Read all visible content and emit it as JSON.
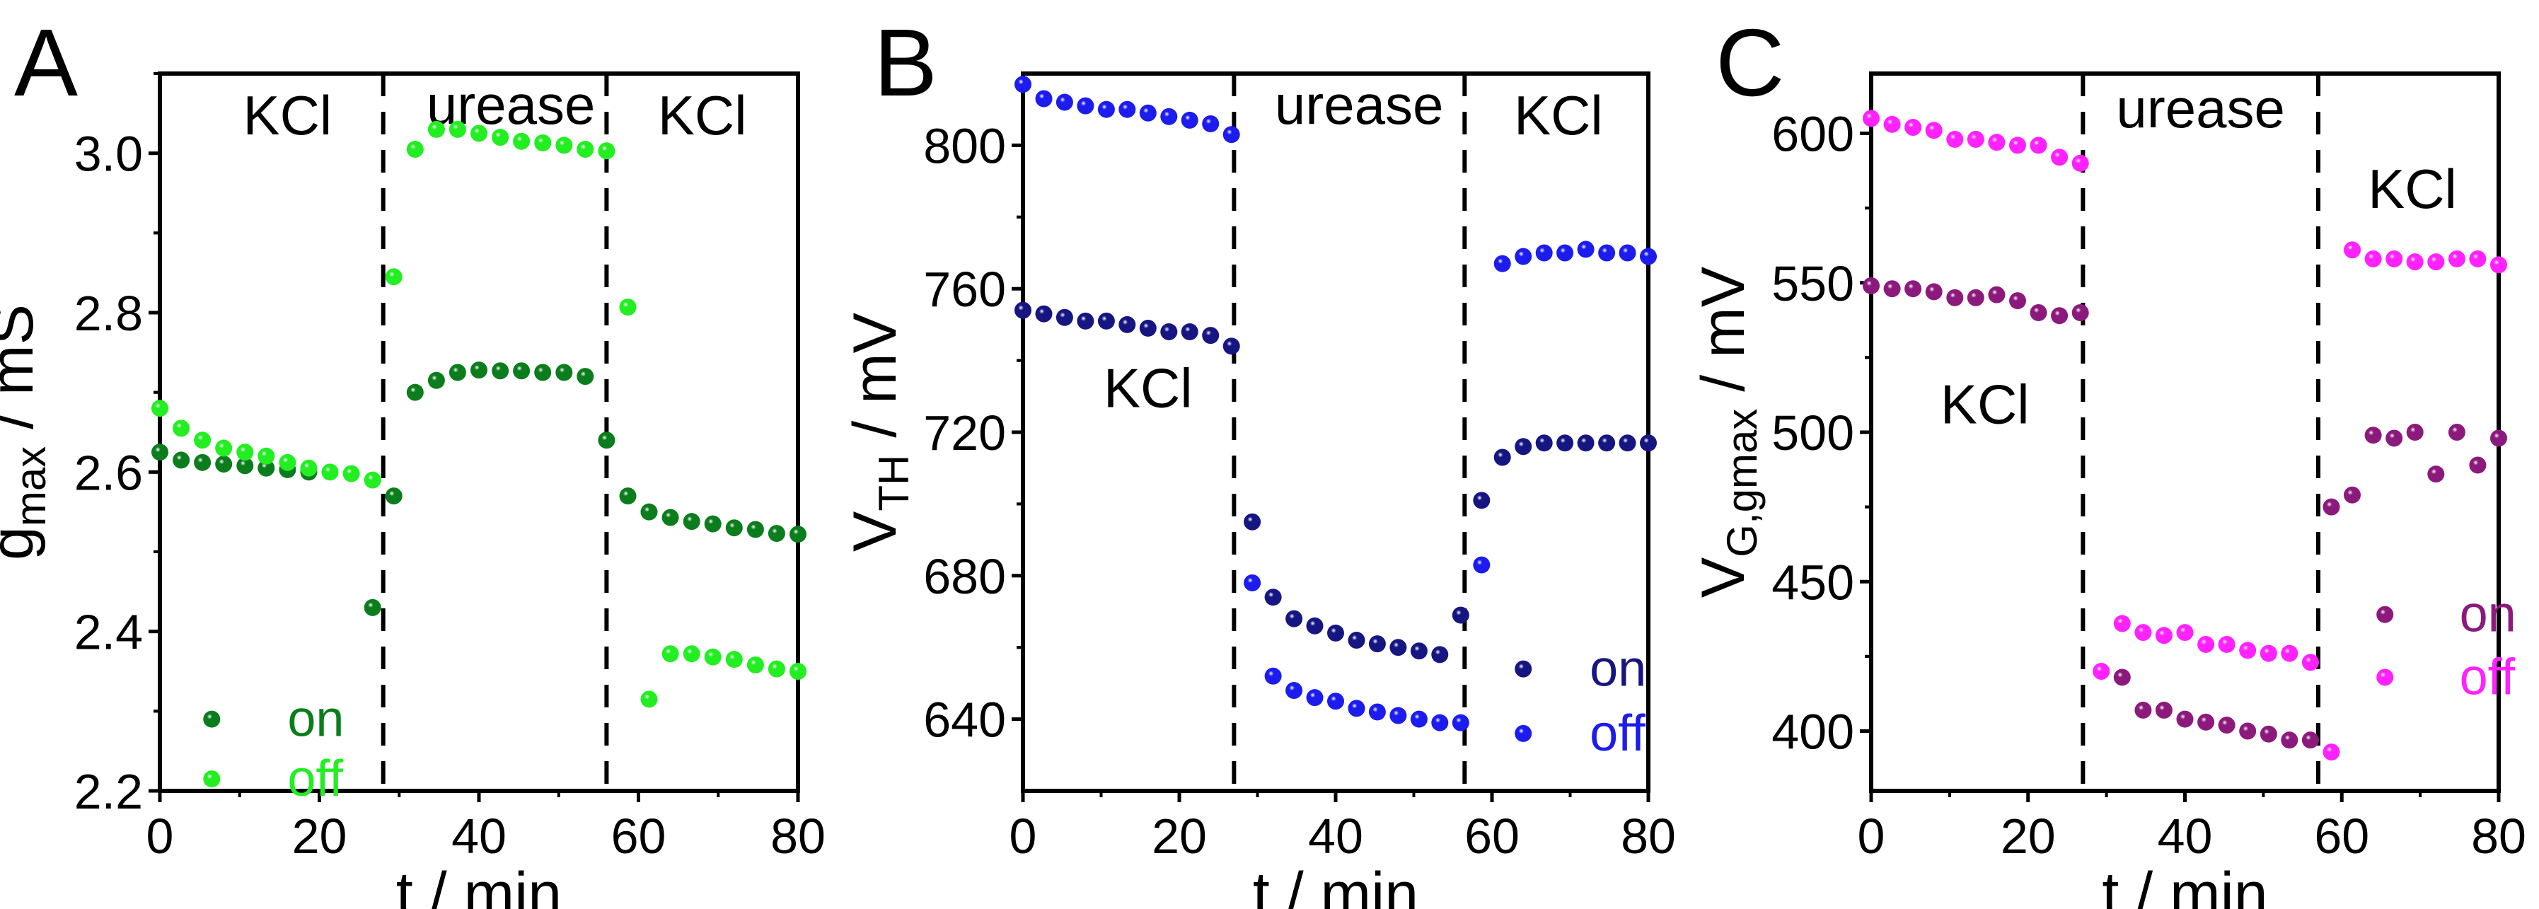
{
  "chart_data": [
    {
      "type": "scatter",
      "panel": "A",
      "xlabel": "t / min",
      "ylabel": {
        "main": "g",
        "sub": "max",
        "unit": " / mS"
      },
      "xlim": [
        0,
        80
      ],
      "ylim": [
        2.2,
        3.1
      ],
      "xticks": [
        "0",
        "20",
        "40",
        "60",
        "80"
      ],
      "yticks": [
        "2.2",
        "2.4",
        "2.6",
        "2.8",
        "3.0"
      ],
      "ytick_values": [
        2.2,
        2.4,
        2.6,
        2.8,
        3.0
      ],
      "phase_boundaries": [
        28,
        56
      ],
      "annotations": [
        "KCl",
        "urease",
        "KCl"
      ],
      "legend_position": "bottom-left",
      "x": [
        0,
        2.67,
        5.33,
        8,
        10.67,
        13.33,
        16,
        18.67,
        21.33,
        24,
        26.67,
        29.33,
        32,
        34.67,
        37.33,
        40,
        42.67,
        45.33,
        48,
        50.67,
        53.33,
        56,
        58.67,
        61.33,
        64,
        66.67,
        69.33,
        72,
        74.67,
        77.33,
        80
      ],
      "series": [
        {
          "name": "on",
          "color": "#0b7d1c",
          "values": [
            2.625,
            2.615,
            2.612,
            2.61,
            2.608,
            2.605,
            2.603,
            2.6,
            null,
            null,
            2.43,
            2.57,
            2.7,
            2.715,
            2.725,
            2.728,
            2.727,
            2.727,
            2.725,
            2.725,
            2.72,
            2.64,
            2.57,
            2.55,
            2.543,
            2.538,
            2.535,
            2.53,
            2.528,
            2.523,
            2.522
          ]
        },
        {
          "name": "off",
          "color": "#22ee22",
          "values": [
            2.68,
            2.655,
            2.64,
            2.63,
            2.625,
            2.62,
            2.612,
            2.605,
            2.6,
            2.598,
            2.59,
            2.845,
            3.005,
            3.03,
            3.03,
            3.025,
            3.02,
            3.015,
            3.013,
            3.01,
            3.005,
            3.003,
            2.807,
            2.315,
            2.372,
            2.372,
            2.368,
            2.365,
            2.358,
            2.353,
            2.35
          ]
        }
      ]
    },
    {
      "type": "scatter",
      "panel": "B",
      "xlabel": "t / min",
      "ylabel": {
        "main": "V",
        "sub": "TH",
        "unit": " / mV"
      },
      "xlim": [
        0,
        80
      ],
      "ylim": [
        620,
        820
      ],
      "xticks": [
        "0",
        "20",
        "40",
        "60",
        "80"
      ],
      "yticks": [
        "640",
        "680",
        "720",
        "760",
        "800"
      ],
      "ytick_values": [
        640,
        680,
        720,
        760,
        800
      ],
      "phase_boundaries": [
        27,
        56.5
      ],
      "annotations": [
        "urease",
        "KCl",
        "KCl"
      ],
      "legend_position": "bottom-right",
      "x": [
        0,
        2.67,
        5.33,
        8,
        10.67,
        13.33,
        16,
        18.67,
        21.33,
        24,
        26.67,
        29.33,
        32,
        34.67,
        37.33,
        40,
        42.67,
        45.33,
        48,
        50.67,
        53.33,
        56,
        58.67,
        61.33,
        64,
        66.67,
        69.33,
        72,
        74.67,
        77.33,
        80
      ],
      "series": [
        {
          "name": "on",
          "color": "#161682",
          "values": [
            754,
            753,
            752,
            751,
            751,
            750,
            749,
            748,
            748,
            747,
            744,
            695,
            674,
            668,
            666,
            664,
            662,
            661,
            660,
            659,
            658,
            669,
            701,
            713,
            716,
            717,
            717,
            717,
            717,
            717,
            717
          ]
        },
        {
          "name": "off",
          "color": "#1c1cee",
          "values": [
            817,
            813,
            812,
            811,
            810,
            810,
            809,
            808,
            807,
            806,
            803,
            678,
            652,
            648,
            646,
            645,
            643,
            642,
            641,
            640,
            639,
            639,
            683,
            767,
            769,
            770,
            770,
            771,
            770,
            770,
            769
          ]
        }
      ]
    },
    {
      "type": "scatter",
      "panel": "C",
      "xlabel": "t / min",
      "ylabel": {
        "main": "V",
        "sub": "G,gmax",
        "unit": " / mV"
      },
      "xlim": [
        0,
        80
      ],
      "ylim": [
        380,
        620
      ],
      "xticks": [
        "0",
        "20",
        "40",
        "60",
        "80"
      ],
      "yticks": [
        "400",
        "450",
        "500",
        "550",
        "600"
      ],
      "ytick_values": [
        400,
        450,
        500,
        550,
        600
      ],
      "phase_boundaries": [
        27,
        57
      ],
      "annotations": [
        "urease",
        "KCl",
        "KCl"
      ],
      "legend_position": "bottom-right",
      "x": [
        0,
        2.67,
        5.33,
        8,
        10.67,
        13.33,
        16,
        18.67,
        21.33,
        24,
        26.67,
        29.33,
        32,
        34.67,
        37.33,
        40,
        42.67,
        45.33,
        48,
        50.67,
        53.33,
        56,
        58.67,
        61.33,
        64,
        66.67,
        69.33,
        72,
        74.67,
        77.33,
        80
      ],
      "series": [
        {
          "name": "on",
          "color": "#8c1a7c",
          "values": [
            549,
            548,
            548,
            547,
            545,
            545,
            546,
            544,
            540,
            539,
            540,
            null,
            418,
            407,
            407,
            404,
            403,
            402,
            400,
            399,
            397,
            397,
            475,
            479,
            499,
            498,
            500,
            486,
            500,
            489,
            498
          ]
        },
        {
          "name": "off",
          "color": "#ff22ff",
          "values": [
            605,
            603,
            602,
            601,
            598,
            598,
            597,
            596,
            596,
            592,
            590,
            420,
            436,
            433,
            432,
            433,
            429,
            429,
            427,
            426,
            426,
            423,
            393,
            561,
            558,
            558,
            557,
            557,
            558,
            558,
            556
          ]
        }
      ]
    }
  ]
}
